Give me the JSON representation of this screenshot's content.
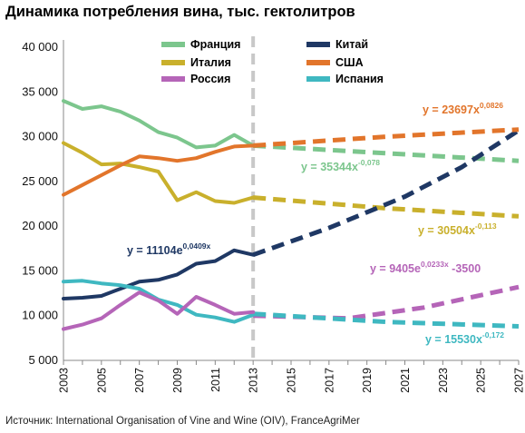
{
  "title": "Динамика потребления вина, тыс. гектолитров",
  "source": "Источник: International Organisation of Vine and Wine (OIV), FranceAgriMer",
  "chart_data": {
    "type": "line",
    "title": "Динамика потребления вина, тыс. гектолитров",
    "xlabel": "",
    "ylabel": "",
    "xlim": [
      2003,
      2027
    ],
    "ylim": [
      5000,
      40000
    ],
    "y_ticks": [
      "5 000",
      "10 000",
      "15 000",
      "20 000",
      "25 000",
      "30 000",
      "35 000",
      "40 000"
    ],
    "x_ticks": [
      "2003",
      "2005",
      "2007",
      "2009",
      "2011",
      "2013",
      "2015",
      "2017",
      "2019",
      "2021",
      "2023",
      "2025",
      "2027"
    ],
    "divider_year": 2013,
    "legend_position": "top",
    "series": [
      {
        "name": "Франция",
        "color": "#7cc68d",
        "x": [
          2003,
          2004,
          2005,
          2006,
          2007,
          2008,
          2009,
          2010,
          2011,
          2012,
          2013
        ],
        "values": [
          34000,
          33100,
          33400,
          32800,
          31800,
          30500,
          29900,
          28800,
          29000,
          30200,
          29000
        ],
        "forecast": {
          "x": [
            2013,
            2027
          ],
          "values": [
            29000,
            27300
          ]
        },
        "formula": {
          "base": "y = 35344x",
          "exp": "-0,078"
        }
      },
      {
        "name": "Италия",
        "color": "#c9b02c",
        "x": [
          2003,
          2004,
          2005,
          2006,
          2007,
          2008,
          2009,
          2010,
          2011,
          2012,
          2013
        ],
        "values": [
          29300,
          28200,
          26900,
          27000,
          26600,
          26100,
          22900,
          23800,
          22800,
          22600,
          23200
        ],
        "forecast": {
          "x": [
            2013,
            2020,
            2027
          ],
          "values": [
            23200,
            22000,
            21100
          ]
        },
        "formula": {
          "base": "y = 30504x",
          "exp": "-0,113"
        }
      },
      {
        "name": "Россия",
        "color": "#b565b8",
        "x": [
          2003,
          2004,
          2005,
          2006,
          2007,
          2008,
          2009,
          2010,
          2011,
          2012,
          2013
        ],
        "values": [
          8500,
          9000,
          9700,
          11200,
          12600,
          11700,
          10200,
          12100,
          11200,
          10200,
          10400
        ],
        "forecast": {
          "x": [
            2013,
            2018,
            2022,
            2027
          ],
          "values": [
            10000,
            9700,
            10900,
            13200
          ]
        },
        "formula": {
          "base": "y = 9405e",
          "exp": "0,0233x",
          "tail": " -3500"
        }
      },
      {
        "name": "Китай",
        "color": "#1f3864",
        "x": [
          2003,
          2004,
          2005,
          2006,
          2007,
          2008,
          2009,
          2010,
          2011,
          2012,
          2013
        ],
        "values": [
          11900,
          12000,
          12200,
          13000,
          13800,
          14000,
          14600,
          15800,
          16100,
          17300,
          16800
        ],
        "forecast": {
          "x": [
            2013,
            2017,
            2021,
            2024,
            2027
          ],
          "values": [
            16800,
            19800,
            23300,
            26600,
            30700
          ]
        },
        "formula": {
          "base": "y = 11104e",
          "exp": "0,0409x"
        }
      },
      {
        "name": "США",
        "color": "#e2752b",
        "x": [
          2003,
          2004,
          2005,
          2006,
          2007,
          2008,
          2009,
          2010,
          2011,
          2012,
          2013
        ],
        "values": [
          23500,
          24600,
          25700,
          26800,
          27800,
          27600,
          27300,
          27600,
          28300,
          28900,
          29000
        ],
        "forecast": {
          "x": [
            2013,
            2020,
            2027
          ],
          "values": [
            29000,
            30000,
            30800
          ]
        },
        "formula": {
          "base": "y = 23697x",
          "exp": "0,0826"
        }
      },
      {
        "name": "Испания",
        "color": "#3fb8c1",
        "x": [
          2003,
          2004,
          2005,
          2006,
          2007,
          2008,
          2009,
          2010,
          2011,
          2012,
          2013
        ],
        "values": [
          13800,
          13900,
          13600,
          13400,
          13000,
          11800,
          11200,
          10100,
          9800,
          9300,
          10100
        ],
        "forecast": {
          "x": [
            2013,
            2020,
            2027
          ],
          "values": [
            10200,
            9300,
            8800
          ]
        },
        "formula": {
          "base": "y = 15530x",
          "exp": "-0,172"
        }
      }
    ]
  }
}
